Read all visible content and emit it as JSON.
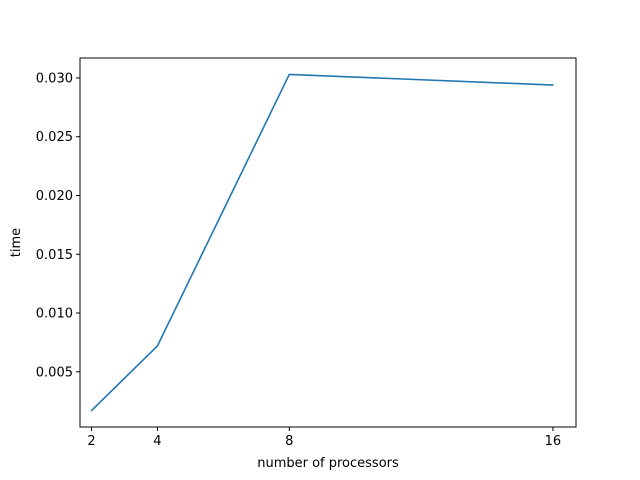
{
  "chart_data": {
    "type": "line",
    "title": "",
    "xlabel": "number of processors",
    "ylabel": "time",
    "x": [
      2,
      4,
      8,
      16
    ],
    "series": [
      {
        "values": [
          0.0017,
          0.0072,
          0.0303,
          0.0294
        ],
        "color": "#1f77b4"
      }
    ],
    "xlim": [
      1.65,
      16.7
    ],
    "ylim": [
      0.0003,
      0.0317
    ],
    "xticks": [
      2,
      4,
      8,
      16
    ],
    "xtick_labels": [
      "2",
      "4",
      "8",
      "16"
    ],
    "yticks": [
      0.005,
      0.01,
      0.015,
      0.02,
      0.025,
      0.03
    ],
    "ytick_labels": [
      "0.005",
      "0.010",
      "0.015",
      "0.020",
      "0.025",
      "0.030"
    ],
    "grid": false,
    "legend": "none"
  }
}
